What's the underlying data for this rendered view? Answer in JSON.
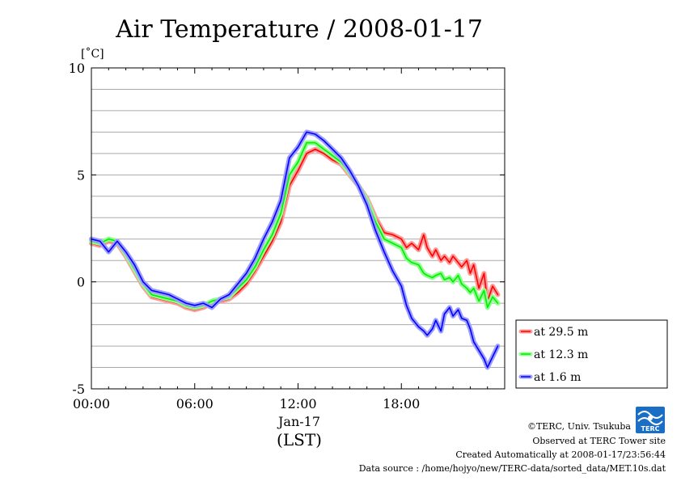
{
  "chart_data": {
    "type": "line",
    "title": "Air Temperature / 2008-01-17",
    "ylabel": "[˚C]",
    "xlabel": "(LST)",
    "date_label": "Jan-17",
    "ylim": [
      -5,
      10
    ],
    "xlim": [
      0,
      24
    ],
    "yticks": [
      -5,
      0,
      5,
      10
    ],
    "xticks": [
      {
        "value": 0,
        "label": "00:00"
      },
      {
        "value": 6,
        "label": "06:00"
      },
      {
        "value": 12,
        "label": "12:00"
      },
      {
        "value": 18,
        "label": "18:00"
      }
    ],
    "grid": true,
    "legend_position": "right",
    "series": [
      {
        "name": "at 29.5 m",
        "color": "#ff0000",
        "band_color": "#ff9a9a",
        "x": [
          0,
          0.5,
          1,
          1.5,
          2,
          2.5,
          3,
          3.5,
          4,
          4.5,
          5,
          5.5,
          6,
          6.5,
          7,
          7.5,
          8,
          8.5,
          9,
          9.5,
          10,
          10.5,
          11,
          11.5,
          12,
          12.5,
          13,
          13.5,
          14,
          14.5,
          15,
          15.5,
          16,
          16.5,
          17,
          17.5,
          18,
          18.3,
          18.6,
          19,
          19.3,
          19.5,
          19.8,
          20,
          20.3,
          20.5,
          20.8,
          21,
          21.3,
          21.5,
          21.8,
          22,
          22.2,
          22.5,
          22.8,
          23,
          23.3,
          23.6
        ],
        "y": [
          1.8,
          1.7,
          1.9,
          1.8,
          1.2,
          0.5,
          -0.2,
          -0.7,
          -0.8,
          -0.9,
          -1.0,
          -1.2,
          -1.3,
          -1.2,
          -1.0,
          -0.9,
          -0.8,
          -0.5,
          -0.1,
          0.5,
          1.2,
          1.9,
          2.8,
          4.5,
          5.2,
          6.0,
          6.2,
          6.0,
          5.7,
          5.5,
          5.0,
          4.5,
          3.9,
          3.0,
          2.3,
          2.2,
          2.0,
          1.6,
          1.8,
          1.5,
          2.2,
          1.6,
          1.2,
          1.5,
          1.0,
          1.2,
          0.9,
          1.2,
          0.9,
          0.7,
          1.0,
          0.4,
          0.8,
          -0.3,
          0.4,
          -0.9,
          -0.2,
          -0.6
        ]
      },
      {
        "name": "at 12.3 m",
        "color": "#00ee00",
        "band_color": "#8fff8f",
        "x": [
          0,
          0.5,
          1,
          1.5,
          2,
          2.5,
          3,
          3.5,
          4,
          4.5,
          5,
          5.5,
          6,
          6.5,
          7,
          7.5,
          8,
          8.5,
          9,
          9.5,
          10,
          10.5,
          11,
          11.5,
          12,
          12.5,
          13,
          13.5,
          14,
          14.5,
          15,
          15.5,
          16,
          16.5,
          17,
          17.5,
          18,
          18.3,
          18.6,
          19,
          19.3,
          19.5,
          19.8,
          20,
          20.3,
          20.5,
          20.8,
          21,
          21.3,
          21.5,
          21.8,
          22,
          22.2,
          22.5,
          22.8,
          23,
          23.3,
          23.6
        ],
        "y": [
          1.9,
          1.8,
          2.0,
          1.9,
          1.3,
          0.6,
          -0.1,
          -0.6,
          -0.7,
          -0.8,
          -0.9,
          -1.1,
          -1.2,
          -1.1,
          -0.9,
          -0.8,
          -0.7,
          -0.3,
          0.1,
          0.7,
          1.5,
          2.2,
          3.2,
          5.0,
          5.6,
          6.5,
          6.5,
          6.2,
          5.9,
          5.6,
          5.1,
          4.5,
          3.8,
          2.8,
          2.0,
          1.8,
          1.6,
          1.1,
          0.9,
          0.8,
          0.4,
          0.3,
          0.2,
          0.3,
          0.4,
          0.1,
          0.2,
          0.0,
          0.3,
          -0.1,
          -0.3,
          -0.5,
          -0.3,
          -0.9,
          -0.4,
          -1.2,
          -0.7,
          -1.0
        ]
      },
      {
        "name": "at 1.6 m",
        "color": "#0000ff",
        "band_color": "#9d9dff",
        "x": [
          0,
          0.5,
          1,
          1.5,
          2,
          2.5,
          3,
          3.5,
          4,
          4.5,
          5,
          5.5,
          6,
          6.5,
          7,
          7.5,
          8,
          8.5,
          9,
          9.5,
          10,
          10.5,
          11,
          11.5,
          12,
          12.5,
          13,
          13.5,
          14,
          14.5,
          15,
          15.5,
          16,
          16.5,
          17,
          17.5,
          18,
          18.3,
          18.6,
          19,
          19.3,
          19.5,
          19.8,
          20,
          20.3,
          20.5,
          20.8,
          21,
          21.3,
          21.5,
          21.8,
          22,
          22.2,
          22.5,
          22.8,
          23,
          23.3,
          23.6
        ],
        "y": [
          2.0,
          1.9,
          1.4,
          1.9,
          1.4,
          0.8,
          0.0,
          -0.4,
          -0.5,
          -0.6,
          -0.8,
          -1.0,
          -1.1,
          -1.0,
          -1.2,
          -0.8,
          -0.6,
          -0.1,
          0.4,
          1.1,
          2.0,
          2.8,
          3.8,
          5.8,
          6.3,
          7.0,
          6.9,
          6.6,
          6.2,
          5.8,
          5.2,
          4.5,
          3.6,
          2.4,
          1.4,
          0.5,
          -0.2,
          -1.1,
          -1.7,
          -2.1,
          -2.3,
          -2.5,
          -2.2,
          -1.8,
          -2.3,
          -1.5,
          -1.2,
          -1.6,
          -1.3,
          -1.7,
          -1.8,
          -2.2,
          -2.8,
          -3.2,
          -3.6,
          -4.0,
          -3.5,
          -3.0
        ]
      }
    ]
  },
  "footer": {
    "copyright": "©TERC, Univ. Tsukuba",
    "observed": "Observed at TERC Tower site",
    "created": "Created Automatically at 2008-01-17/23:56:44",
    "source": "Data source : /home/hojyo/new/TERC-data/sorted_data/MET.10s.dat",
    "logo_text": "TERC",
    "logo_color": "#1a6fc4"
  }
}
